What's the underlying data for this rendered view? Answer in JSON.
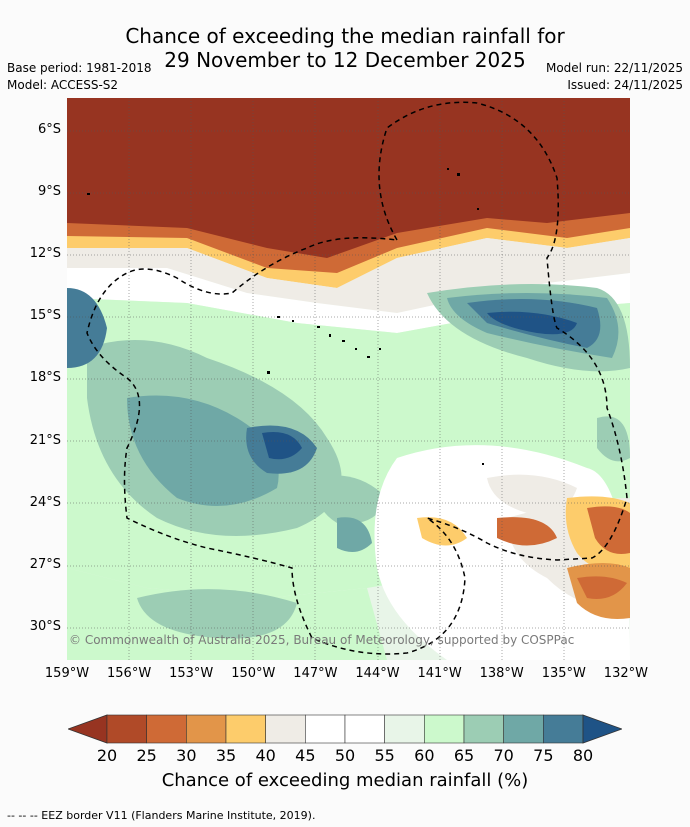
{
  "title": {
    "line1": "Chance of exceeding the median rainfall for",
    "line2": "29 November to 12 December 2025"
  },
  "meta": {
    "base_period": "Base period: 1981-2018",
    "model": "Model: ACCESS-S2",
    "model_run": "Model run: 22/11/2025",
    "issued": "Issued: 24/11/2025"
  },
  "map": {
    "lat_labels": [
      "6°S",
      "9°S",
      "12°S",
      "15°S",
      "18°S",
      "21°S",
      "24°S",
      "27°S",
      "30°S"
    ],
    "lon_labels": [
      "159°W",
      "156°W",
      "153°W",
      "150°W",
      "147°W",
      "144°W",
      "141°W",
      "138°W",
      "135°W",
      "132°W"
    ],
    "copyright": "© Commonwealth of Australia 2025, Bureau of Meteorology, supported by COSPPac"
  },
  "colorbar": {
    "ticks": [
      "20",
      "25",
      "30",
      "35",
      "40",
      "45",
      "50",
      "55",
      "60",
      "65",
      "70",
      "75",
      "80"
    ],
    "title": "Chance of exceeding median rainfall (%)",
    "colors": [
      "#973421",
      "#b04a28",
      "#cf6a36",
      "#e29549",
      "#fdcc6b",
      "#efece6",
      "#ffffff",
      "#ffffff",
      "#e8f5e8",
      "#ccf9cc",
      "#9ccdb4",
      "#6fa8a6",
      "#457c97",
      "#1f5386"
    ]
  },
  "footer": "--  --  -- EEZ border V11 (Flanders Marine Institute, 2019)."
}
